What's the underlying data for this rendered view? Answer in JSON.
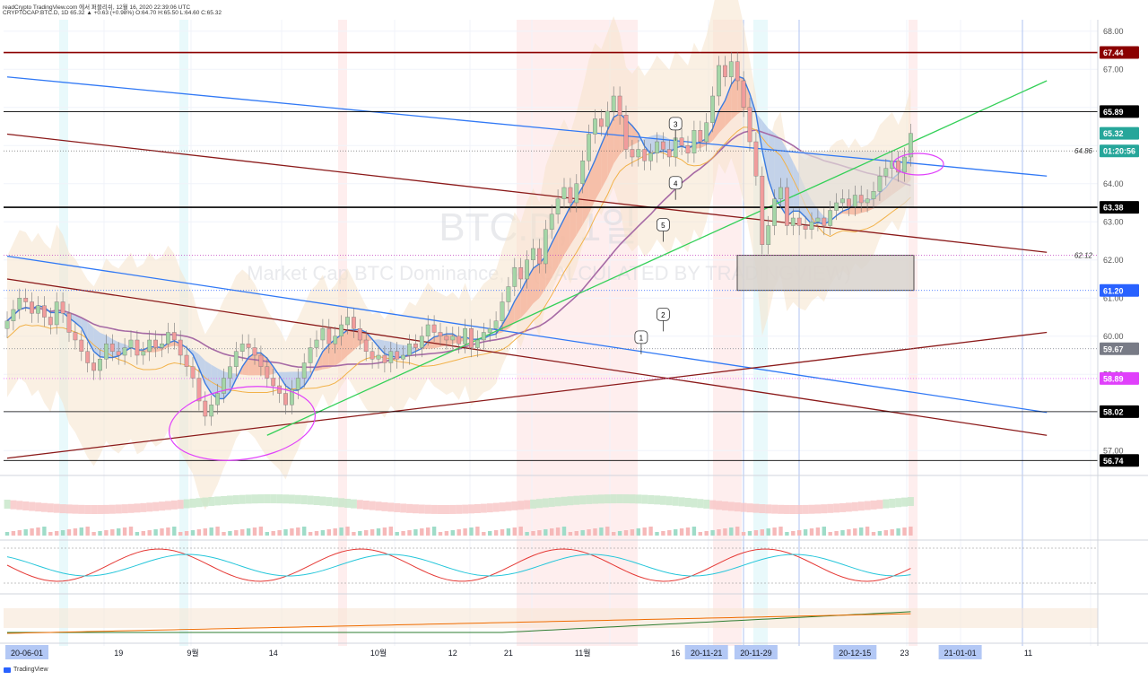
{
  "header": {
    "line1": "readCrypto TradingView.com 에서 퍼블리쉬, 12월 16, 2020 22:39:06 UTC",
    "line2": "CRYPTOCAP:BTC.D, 1D 65.32 ▲ +0.63 (+0.98%) O:64.70 H:65.50 L:64.60 C:65.32"
  },
  "watermark": {
    "symbol": "BTC.D, 1일",
    "description": "Market Cap BTC Dominance, % (CALCULATED BY TRADINGVIEW)"
  },
  "footer": {
    "brand": "TradingView"
  },
  "chart_data": {
    "type": "candlestick",
    "y_axis": {
      "min": 56.7,
      "max": 68.3,
      "ticks": [
        "68.00",
        "67.00",
        "64.00",
        "63.00",
        "62.00",
        "61.00",
        "60.00",
        "59.00",
        "58.00",
        "57.00"
      ]
    },
    "price_labels": [
      {
        "value": 67.44,
        "text": "67.44",
        "bg": "#8b0000"
      },
      {
        "value": 65.89,
        "text": "65.89",
        "bg": "#000000"
      },
      {
        "value": 65.32,
        "text": "65.32",
        "bg": "#26a69a"
      },
      {
        "value": 64.86,
        "text": "01:20:56",
        "bg": "#26a69a"
      },
      {
        "value": 63.38,
        "text": "63.38",
        "bg": "#000000"
      },
      {
        "value": 61.2,
        "text": "61.20",
        "bg": "#2962ff"
      },
      {
        "value": 59.67,
        "text": "59.67",
        "bg": "#787b86"
      },
      {
        "value": 58.89,
        "text": "58.89",
        "bg": "#e040fb"
      },
      {
        "value": 58.02,
        "text": "58.02",
        "bg": "#000000"
      },
      {
        "value": 56.74,
        "text": "56.74",
        "bg": "#000000"
      }
    ],
    "inline_labels": [
      {
        "value": 64.86,
        "text": "64.86"
      },
      {
        "value": 62.12,
        "text": "62.12"
      }
    ],
    "x_axis_labels": [
      {
        "text": "20-06-01",
        "x": 0,
        "highlight": true
      },
      {
        "text": "19",
        "x": 18
      },
      {
        "text": "9월",
        "x": 30
      },
      {
        "text": "14",
        "x": 43
      },
      {
        "text": "10월",
        "x": 60
      },
      {
        "text": "12",
        "x": 72
      },
      {
        "text": "21",
        "x": 81
      },
      {
        "text": "11월",
        "x": 93
      },
      {
        "text": "16",
        "x": 108
      },
      {
        "text": "20-11-21",
        "x": 113,
        "highlight": true
      },
      {
        "text": "20-11-29",
        "x": 121,
        "highlight": true
      },
      {
        "text": "20-12-15",
        "x": 137,
        "highlight": true
      },
      {
        "text": "23",
        "x": 145
      },
      {
        "text": "21-01-01",
        "x": 154,
        "highlight": true
      },
      {
        "text": "11",
        "x": 165
      }
    ],
    "annotations": [
      {
        "text": "1",
        "x": 101,
        "y": 59.95
      },
      {
        "text": "2",
        "x": 106,
        "y": 60.55
      },
      {
        "text": "3",
        "x": 108,
        "y": 65.55
      },
      {
        "text": "4",
        "x": 108,
        "y": 64.0
      },
      {
        "text": "5",
        "x": 106,
        "y": 62.9
      }
    ],
    "candles_close": [
      60.4,
      60.7,
      61.0,
      60.9,
      60.6,
      60.8,
      60.5,
      60.3,
      60.9,
      60.6,
      60.1,
      59.9,
      59.6,
      59.3,
      59.1,
      59.4,
      59.8,
      59.6,
      59.5,
      59.7,
      59.9,
      59.5,
      59.6,
      59.9,
      59.7,
      59.8,
      60.1,
      59.9,
      59.5,
      59.2,
      58.9,
      58.3,
      57.9,
      58.2,
      58.5,
      58.9,
      59.2,
      59.6,
      59.8,
      59.7,
      59.5,
      59.2,
      58.9,
      58.7,
      58.5,
      58.2,
      58.6,
      58.9,
      59.3,
      59.7,
      59.9,
      60.2,
      59.8,
      60.0,
      60.3,
      60.5,
      60.2,
      59.9,
      59.6,
      59.4,
      59.5,
      59.3,
      59.6,
      59.4,
      59.5,
      59.8,
      59.7,
      60.0,
      60.3,
      60.1,
      60.0,
      59.9,
      60.0,
      59.8,
      60.2,
      59.7,
      59.9,
      60.1,
      60.2,
      60.4,
      60.9,
      61.3,
      61.8,
      61.5,
      62.0,
      62.3,
      61.9,
      62.8,
      63.2,
      63.6,
      63.9,
      63.5,
      64.0,
      64.6,
      65.3,
      65.7,
      65.5,
      65.9,
      66.3,
      65.8,
      64.9,
      64.7,
      64.9,
      64.6,
      64.8,
      65.1,
      64.9,
      64.7,
      65.2,
      65.0,
      64.8,
      65.4,
      65.1,
      65.6,
      66.3,
      67.1,
      66.8,
      67.2,
      66.7,
      66.0,
      65.1,
      64.2,
      62.4,
      62.9,
      63.6,
      63.9,
      62.9,
      63.1,
      62.9,
      62.8,
      63.0,
      63.1,
      62.9,
      63.3,
      63.5,
      63.6,
      63.4,
      63.7,
      63.5,
      63.6,
      63.8,
      64.2,
      64.4,
      64.6,
      64.3,
      64.7,
      65.32
    ],
    "lines": [
      {
        "name": "blue-upper-channel",
        "color": "#3179f5",
        "from": [
          0,
          66.8
        ],
        "to": [
          168,
          64.2
        ]
      },
      {
        "name": "blue-lower-channel",
        "color": "#3179f5",
        "from": [
          0,
          62.1
        ],
        "to": [
          168,
          58.0
        ]
      },
      {
        "name": "red-upper-channel",
        "color": "#8b1a1a",
        "from": [
          0,
          65.3
        ],
        "to": [
          168,
          62.2
        ]
      },
      {
        "name": "red-lower-channel",
        "color": "#8b1a1a",
        "from": [
          0,
          61.5
        ],
        "to": [
          168,
          57.4
        ]
      },
      {
        "name": "red-rising-line",
        "color": "#8b1a1a",
        "from": [
          0,
          56.8
        ],
        "to": [
          168,
          60.1
        ]
      },
      {
        "name": "green-trend-line",
        "color": "#34d058",
        "from": [
          42,
          57.4
        ],
        "to": [
          168,
          66.7
        ]
      }
    ]
  }
}
